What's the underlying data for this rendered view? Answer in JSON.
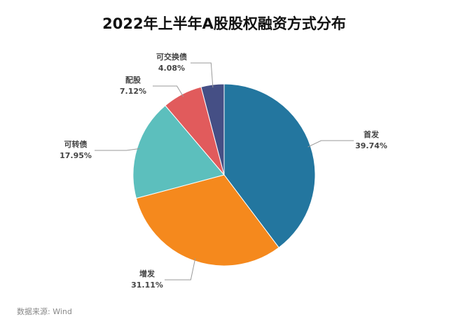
{
  "chart_data": {
    "type": "pie",
    "title": "2022年上半年A股股权融资方式分布",
    "categories": [
      "首发",
      "增发",
      "可转债",
      "配股",
      "可交换债"
    ],
    "values": [
      39.74,
      31.11,
      17.95,
      7.12,
      4.08
    ],
    "value_labels": [
      "39.74%",
      "31.11%",
      "17.95%",
      "7.12%",
      "4.08%"
    ],
    "colors": [
      "#23769f",
      "#f5891d",
      "#5cbfbd",
      "#e15b5c",
      "#454f85"
    ],
    "source": "数据来源: Wind"
  }
}
